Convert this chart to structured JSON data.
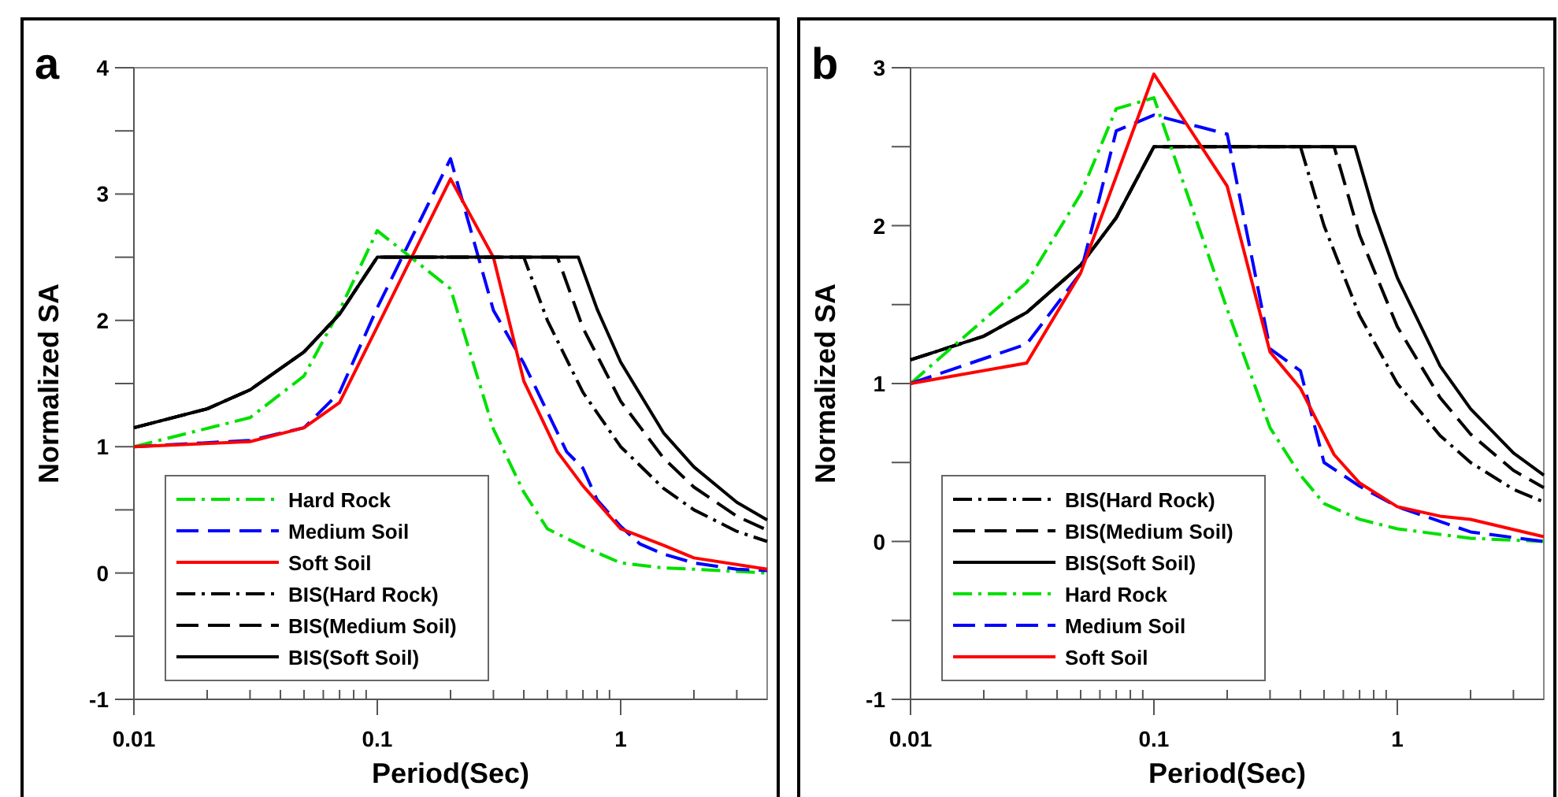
{
  "chart_data": [
    {
      "type": "line",
      "title": "a",
      "xlabel": "Period(Sec)",
      "ylabel": "Normalized SA",
      "log": "x",
      "xlim": [
        0.01,
        4
      ],
      "ylim": [
        -1,
        4
      ],
      "xticks": [
        0.01,
        {
          "value": 0.02,
          "label": null
        },
        {
          "value": 0.03,
          "label": null
        },
        {
          "value": 0.04,
          "label": null
        },
        {
          "value": 0.05,
          "label": null
        },
        {
          "value": 0.06,
          "label": null
        },
        {
          "value": 0.07,
          "label": null
        },
        {
          "value": 0.08,
          "label": null
        },
        {
          "value": 0.09,
          "label": null
        },
        0.1,
        {
          "value": 0.2,
          "label": null
        },
        {
          "value": 0.3,
          "label": null
        },
        {
          "value": 0.4,
          "label": null
        },
        {
          "value": 0.5,
          "label": null
        },
        {
          "value": 0.6,
          "label": null
        },
        {
          "value": 0.7,
          "label": null
        },
        {
          "value": 0.8,
          "label": null
        },
        {
          "value": 0.9,
          "label": null
        },
        1,
        {
          "value": 2,
          "label": null
        },
        {
          "value": 3,
          "label": null
        }
      ],
      "yticks": [
        -1,
        {
          "value": -0.5,
          "label": null
        },
        0,
        {
          "value": 0.5,
          "label": null
        },
        1,
        {
          "value": 1.5,
          "label": null
        },
        2,
        {
          "value": 2.5,
          "label": null
        },
        3,
        {
          "value": 3.5,
          "label": null
        },
        4
      ],
      "grid": false,
      "legend": "bottom left",
      "series": [
        {
          "name": "Hard Rock",
          "color": "#00e000",
          "line_style": "dashdot",
          "x": [
            0.01,
            0.03,
            0.05,
            0.07,
            0.1,
            0.2,
            0.3,
            0.4,
            0.5,
            0.7,
            1,
            1.5,
            2,
            4
          ],
          "values": [
            1,
            1.23,
            1.56,
            2.08,
            2.71,
            2.25,
            1.14,
            0.64,
            0.35,
            0.21,
            0.08,
            0.04,
            0.03,
            0
          ]
        },
        {
          "name": "Medium Soil",
          "color": "#0000ff",
          "line_style": "dashed",
          "x": [
            0.01,
            0.03,
            0.05,
            0.07,
            0.1,
            0.2,
            0.3,
            0.4,
            0.6,
            0.7,
            0.8,
            1,
            1.2,
            1.5,
            2,
            3,
            4
          ],
          "values": [
            1,
            1.05,
            1.15,
            1.43,
            2.1,
            3.28,
            2.08,
            1.66,
            0.96,
            0.83,
            0.58,
            0.37,
            0.23,
            0.15,
            0.08,
            0.03,
            0.02
          ]
        },
        {
          "name": "Soft Soil",
          "color": "#ff0000",
          "line_style": "solid",
          "x": [
            0.01,
            0.03,
            0.05,
            0.07,
            0.1,
            0.2,
            0.3,
            0.4,
            0.55,
            0.7,
            1,
            1.5,
            2,
            4
          ],
          "values": [
            1,
            1.04,
            1.15,
            1.35,
            1.95,
            3.12,
            2.5,
            1.52,
            0.96,
            0.69,
            0.35,
            0.22,
            0.12,
            0.03
          ]
        },
        {
          "name": "BIS(Hard Rock)",
          "color": "#000000",
          "line_style": "dashdot",
          "x": [
            0.01,
            0.02,
            0.03,
            0.05,
            0.07,
            0.1,
            0.4,
            0.5,
            0.7,
            1,
            1.5,
            2,
            3,
            4
          ],
          "values": [
            1.15,
            1.3,
            1.45,
            1.75,
            2.05,
            2.5,
            2.5,
            2,
            1.43,
            1,
            0.67,
            0.5,
            0.33,
            0.25
          ]
        },
        {
          "name": "BIS(Medium Soil)",
          "color": "#000000",
          "line_style": "dashed",
          "x": [
            0.01,
            0.02,
            0.03,
            0.05,
            0.07,
            0.1,
            0.55,
            0.7,
            1,
            1.5,
            2,
            3,
            4
          ],
          "values": [
            1.15,
            1.3,
            1.45,
            1.75,
            2.05,
            2.5,
            2.5,
            1.94,
            1.36,
            0.91,
            0.68,
            0.45,
            0.34
          ]
        },
        {
          "name": "BIS(Soft Soil)",
          "color": "#000000",
          "line_style": "solid",
          "x": [
            0.01,
            0.02,
            0.03,
            0.05,
            0.07,
            0.1,
            0.67,
            0.8,
            1,
            1.5,
            2,
            3,
            4
          ],
          "values": [
            1.15,
            1.3,
            1.45,
            1.75,
            2.05,
            2.5,
            2.5,
            2.09,
            1.67,
            1.11,
            0.84,
            0.56,
            0.42
          ]
        }
      ]
    },
    {
      "type": "line",
      "title": "b",
      "xlabel": "Period(Sec)",
      "ylabel": "Normalized SA",
      "log": "x",
      "xlim": [
        0.01,
        4
      ],
      "ylim": [
        -1,
        3
      ],
      "xticks": [
        0.01,
        {
          "value": 0.02,
          "label": null
        },
        {
          "value": 0.03,
          "label": null
        },
        {
          "value": 0.04,
          "label": null
        },
        {
          "value": 0.05,
          "label": null
        },
        {
          "value": 0.06,
          "label": null
        },
        {
          "value": 0.07,
          "label": null
        },
        {
          "value": 0.08,
          "label": null
        },
        {
          "value": 0.09,
          "label": null
        },
        0.1,
        {
          "value": 0.2,
          "label": null
        },
        {
          "value": 0.3,
          "label": null
        },
        {
          "value": 0.4,
          "label": null
        },
        {
          "value": 0.5,
          "label": null
        },
        {
          "value": 0.6,
          "label": null
        },
        {
          "value": 0.7,
          "label": null
        },
        {
          "value": 0.8,
          "label": null
        },
        {
          "value": 0.9,
          "label": null
        },
        1,
        {
          "value": 2,
          "label": null
        },
        {
          "value": 3,
          "label": null
        }
      ],
      "yticks": [
        -1,
        {
          "value": -0.5,
          "label": null
        },
        0,
        {
          "value": 0.5,
          "label": null
        },
        1,
        {
          "value": 1.5,
          "label": null
        },
        2,
        {
          "value": 2.5,
          "label": null
        },
        3
      ],
      "grid": false,
      "legend": "bottom left",
      "series": [
        {
          "name": "BIS(Hard Rock)",
          "color": "#000000",
          "line_style": "dashdot",
          "x": [
            0.01,
            0.02,
            0.03,
            0.05,
            0.07,
            0.1,
            0.4,
            0.5,
            0.7,
            1,
            1.5,
            2,
            3,
            4
          ],
          "values": [
            1.15,
            1.3,
            1.45,
            1.75,
            2.05,
            2.5,
            2.5,
            2,
            1.43,
            1,
            0.67,
            0.5,
            0.33,
            0.25
          ]
        },
        {
          "name": "BIS(Medium Soil)",
          "color": "#000000",
          "line_style": "dashed",
          "x": [
            0.01,
            0.02,
            0.03,
            0.05,
            0.07,
            0.1,
            0.55,
            0.7,
            1,
            1.5,
            2,
            3,
            4
          ],
          "values": [
            1.15,
            1.3,
            1.45,
            1.75,
            2.05,
            2.5,
            2.5,
            1.94,
            1.36,
            0.91,
            0.68,
            0.45,
            0.34
          ]
        },
        {
          "name": "BIS(Soft Soil)",
          "color": "#000000",
          "line_style": "solid",
          "x": [
            0.01,
            0.02,
            0.03,
            0.05,
            0.07,
            0.1,
            0.67,
            0.8,
            1,
            1.5,
            2,
            3,
            4
          ],
          "values": [
            1.15,
            1.3,
            1.45,
            1.75,
            2.05,
            2.5,
            2.5,
            2.09,
            1.67,
            1.11,
            0.84,
            0.56,
            0.42
          ]
        },
        {
          "name": "Hard Rock",
          "color": "#00e000",
          "line_style": "dashdot",
          "x": [
            0.01,
            0.03,
            0.05,
            0.07,
            0.1,
            0.2,
            0.3,
            0.4,
            0.5,
            0.7,
            1,
            2,
            4
          ],
          "values": [
            1,
            1.64,
            2.2,
            2.74,
            2.81,
            1.47,
            0.72,
            0.42,
            0.24,
            0.14,
            0.08,
            0.02,
            0
          ]
        },
        {
          "name": "Medium Soil",
          "color": "#0000ff",
          "line_style": "dashed",
          "x": [
            0.01,
            0.03,
            0.05,
            0.07,
            0.1,
            0.2,
            0.3,
            0.4,
            0.5,
            0.7,
            1,
            2,
            4
          ],
          "values": [
            1,
            1.25,
            1.7,
            2.6,
            2.7,
            2.58,
            1.22,
            1.08,
            0.5,
            0.35,
            0.22,
            0.06,
            0
          ]
        },
        {
          "name": "Soft Soil",
          "color": "#ff0000",
          "line_style": "solid",
          "x": [
            0.01,
            0.03,
            0.05,
            0.1,
            0.2,
            0.3,
            0.4,
            0.55,
            0.7,
            1,
            1.5,
            2,
            4
          ],
          "values": [
            1,
            1.13,
            1.7,
            2.96,
            2.25,
            1.2,
            0.97,
            0.55,
            0.37,
            0.22,
            0.16,
            0.14,
            0.03
          ]
        }
      ]
    }
  ]
}
